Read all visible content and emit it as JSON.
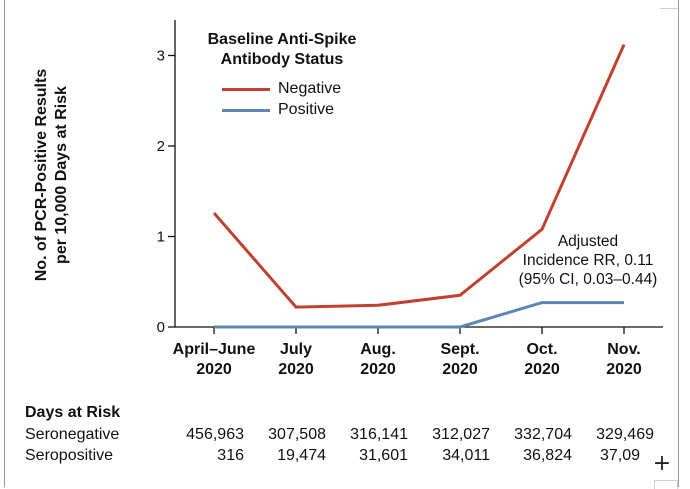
{
  "chart_data": {
    "type": "line",
    "categories": [
      [
        "April–June",
        "2020"
      ],
      [
        "July",
        "2020"
      ],
      [
        "Aug.",
        "2020"
      ],
      [
        "Sept.",
        "2020"
      ],
      [
        "Oct.",
        "2020"
      ],
      [
        "Nov.",
        "2020"
      ]
    ],
    "ylabel": [
      "No. of PCR-Positive Results",
      "per 10,000 Days at Risk"
    ],
    "ylim": [
      0,
      3.3
    ],
    "yticks": [
      0,
      1,
      2,
      3
    ],
    "legend_title": [
      "Baseline Anti-Spike",
      "Antibody Status"
    ],
    "legend_position": "top-left",
    "series": [
      {
        "name": "Negative",
        "color": "#c1412e",
        "values": [
          1.26,
          0.22,
          0.24,
          0.35,
          1.08,
          3.12
        ]
      },
      {
        "name": "Positive",
        "color": "#5b87b8",
        "values": [
          0,
          0,
          0,
          0,
          0.27,
          0.27
        ]
      }
    ],
    "annotation": [
      "Adjusted",
      "Incidence RR, 0.11",
      "(95% CI, 0.03–0.44)"
    ],
    "grid": false
  },
  "days_at_risk": {
    "title": "Days at Risk",
    "rows": [
      {
        "label": "Seronegative",
        "values": [
          "456,963",
          "307,508",
          "316,141",
          "312,027",
          "332,704",
          "329,469"
        ]
      },
      {
        "label": "Seropositive",
        "values": [
          "316",
          "19,474",
          "31,601",
          "34,011",
          "36,824",
          "37,09"
        ]
      }
    ]
  },
  "controls": {
    "expand_label": "+"
  }
}
